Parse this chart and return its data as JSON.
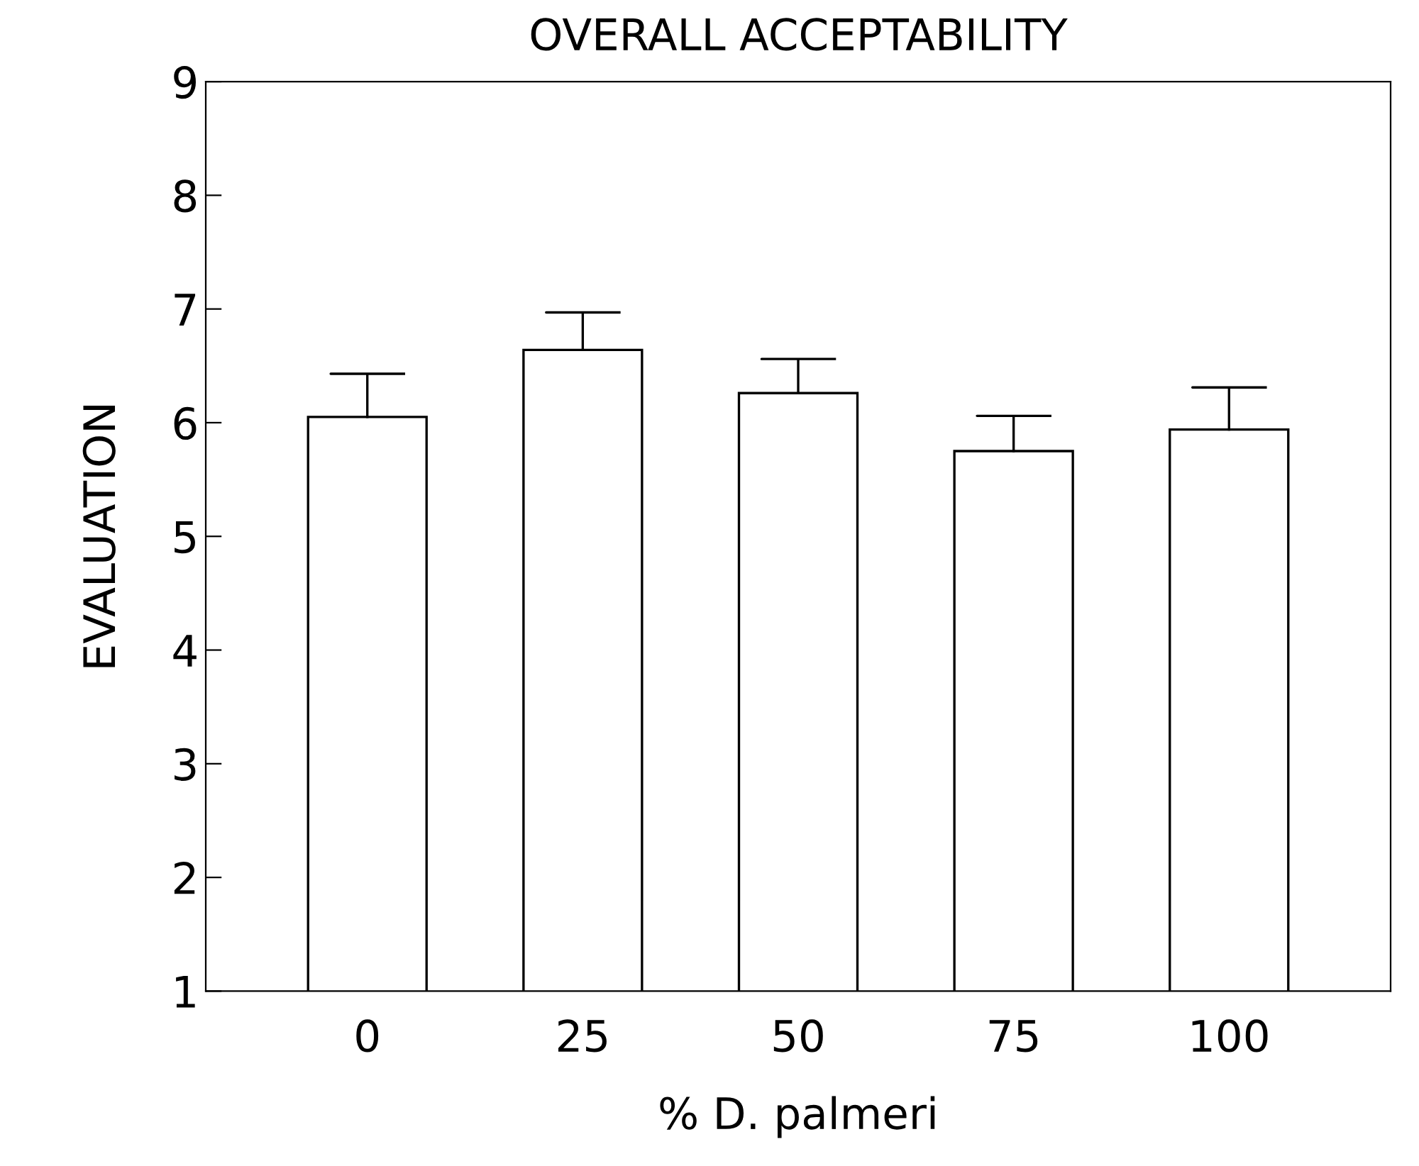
{
  "chart_data": {
    "type": "bar",
    "title": "OVERALL ACCEPTABILITY",
    "xlabel": "% D. palmeri",
    "ylabel": "EVALUATION",
    "categories": [
      "0",
      "25",
      "50",
      "75",
      "100"
    ],
    "series": [
      {
        "color": "#ffffff",
        "values": [
          6.05,
          6.64,
          6.26,
          5.75,
          5.94
        ],
        "errors": [
          [
            6.05,
            6.43
          ],
          [
            6.64,
            6.97
          ],
          [
            6.26,
            6.56
          ],
          [
            5.75,
            6.06
          ],
          [
            5.94,
            6.31
          ]
        ]
      }
    ],
    "ylim": [
      1,
      9
    ],
    "yticks": [
      1,
      2,
      3,
      4,
      5,
      6,
      7,
      8,
      9
    ],
    "grid": false,
    "legend": false
  }
}
